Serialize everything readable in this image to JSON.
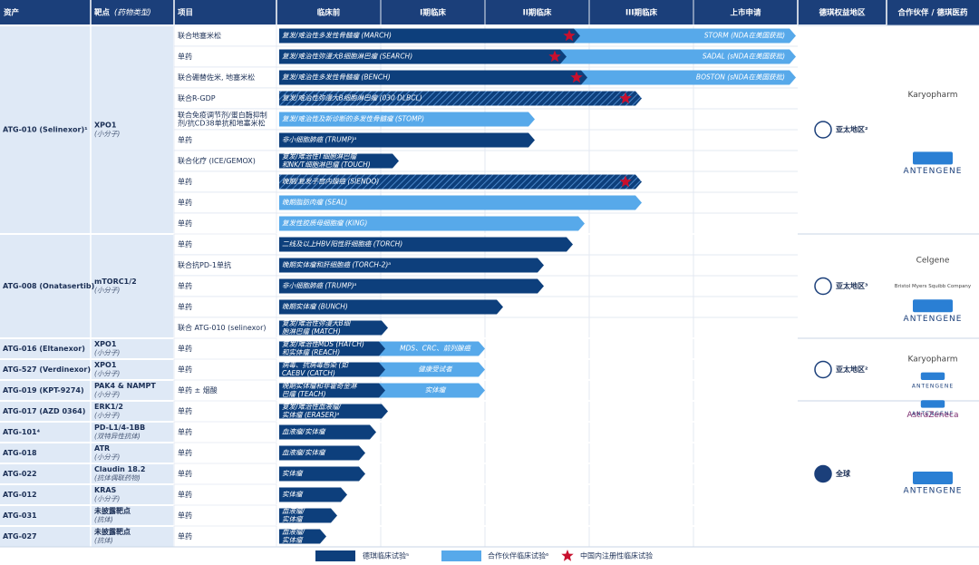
{
  "header": {
    "asset": "资产",
    "target": "靶点",
    "target_type": "(药物类型)",
    "project": "项目",
    "phases": [
      "临床前",
      "I期临床",
      "II期临床",
      "III期临床",
      "上市申请"
    ],
    "region": "德琪权益地区",
    "partner": "合作伙伴 / 德琪医药"
  },
  "assets": [
    {
      "name": "ATG-010 (Selinexor)¹",
      "target": "XPO1",
      "type": "(小分子)",
      "rows": [
        {
          "project": [
            "联合地塞米松"
          ],
          "trial": [
            "复发/难治性多发性骨髓瘤 (MARCH)"
          ],
          "extra": "STORM (NDA在美国获批)"
        },
        {
          "project": [
            "单药"
          ],
          "trial": [
            "复发/难治性弥漫大B细胞淋巴瘤 (SEARCH)"
          ],
          "extra": "SADAL (sNDA在美国获批)"
        },
        {
          "project": [
            "联合硼替佐米, 地塞米松"
          ],
          "trial": [
            "复发/难治性多发性骨髓瘤 (BENCH)"
          ],
          "extra": "BOSTON (sNDA在美国获批)"
        },
        {
          "project": [
            "联合R-GDP"
          ],
          "trial": [
            "复发/难治性弥漫大B细胞淋巴瘤 (030 DLBCL)"
          ]
        },
        {
          "project": [
            "联合免疫调节剂/蛋白酶抑制",
            "剂/抗CD38单抗和地塞米松"
          ],
          "trial": [
            "复发/难治性及新诊断的多发性骨髓瘤 (STOMP)"
          ]
        },
        {
          "project": [
            "单药"
          ],
          "trial": [
            "非小细胞肺癌 (TRUMP)ᵃ"
          ]
        },
        {
          "project": [
            "联合化疗 (ICE/GEMOX)"
          ],
          "trial": [
            "复发/难治性T细胞淋巴瘤",
            "和NK/T细胞淋巴瘤 (TOUCH)"
          ]
        },
        {
          "project": [
            "单药"
          ],
          "trial": [
            "晚期/复发子宫内膜癌 (SIENDO)"
          ]
        },
        {
          "project": [
            "单药"
          ],
          "trial": [
            "晚期脂肪肉瘤 (SEAL)"
          ]
        },
        {
          "project": [
            "单药"
          ],
          "trial": [
            "复发性胶质母细胞瘤 (KING)"
          ]
        }
      ]
    },
    {
      "name": "ATG-008 (Onatasertib)",
      "target": "mTORC1/2",
      "type": "(小分子)",
      "rows": [
        {
          "project": [
            "单药"
          ],
          "trial": [
            "二线及以上HBV阳性肝细胞癌 (TORCH)"
          ]
        },
        {
          "project": [
            "联合抗PD-1单抗"
          ],
          "trial": [
            "晚期实体瘤和肝细胞癌 (TORCH-2)ᵃ"
          ]
        },
        {
          "project": [
            "单药"
          ],
          "trial": [
            "非小细胞肺癌 (TRUMP)ᵃ"
          ]
        },
        {
          "project": [
            "单药"
          ],
          "trial": [
            "晚期实体瘤 (BUNCH)"
          ]
        },
        {
          "project": [
            "联合 ATG-010 (selinexor)"
          ],
          "trial": [
            "复发/难治性弥漫大B细",
            "胞淋巴瘤 (MATCH)"
          ]
        }
      ]
    },
    {
      "name": "ATG-016 (Eltanexor)",
      "target": "XPO1",
      "type": "(小分子)",
      "rows": [
        {
          "project": [
            "单药"
          ],
          "trial": [
            "复发/难治性MDS (HATCH)",
            "和实体瘤 (REACH)"
          ],
          "extra": "MDS、CRC、前列腺癌"
        }
      ]
    },
    {
      "name": "ATG-527 (Verdinexor)",
      "target": "XPO1",
      "type": "(小分子)",
      "rows": [
        {
          "project": [
            "单药"
          ],
          "trial": [
            "病毒、抗病毒感染 (如",
            "CAEBV (CATCH)"
          ],
          "extra": "健康受试者"
        }
      ]
    },
    {
      "name": "ATG-019 (KPT-9274)",
      "target": "PAK4 & NAMPT",
      "type": "(小分子)",
      "rows": [
        {
          "project": [
            "单药 ± 烟酸"
          ],
          "trial": [
            "晚期实体瘤和非霍奇金淋",
            "巴瘤 (TEACH)"
          ],
          "extra": "实体瘤"
        }
      ]
    },
    {
      "name": "ATG-017 (AZD 0364)",
      "target": "ERK1/2",
      "type": "(小分子)",
      "rows": [
        {
          "project": [
            "单药"
          ],
          "trial": [
            "复发/难治性血液瘤/",
            "实体瘤 (ERASER)ᵃ"
          ]
        }
      ]
    },
    {
      "name": "ATG-101⁴",
      "target": "PD-L1/4-1BB",
      "type": "(双特异性抗体)",
      "rows": [
        {
          "project": [
            "单药"
          ],
          "trial": [
            "血液瘤/实体瘤"
          ]
        }
      ]
    },
    {
      "name": "ATG-018",
      "target": "ATR",
      "type": "(小分子)",
      "rows": [
        {
          "project": [
            "单药"
          ],
          "trial": [
            "血液瘤/实体瘤"
          ]
        }
      ]
    },
    {
      "name": "ATG-022",
      "target": "Claudin 18.2",
      "type": "(抗体偶联药物)",
      "rows": [
        {
          "project": [
            "单药"
          ],
          "trial": [
            "实体瘤"
          ]
        }
      ]
    },
    {
      "name": "ATG-012",
      "target": "KRAS",
      "type": "(小分子)",
      "rows": [
        {
          "project": [
            "单药"
          ],
          "trial": [
            "实体瘤"
          ]
        }
      ]
    },
    {
      "name": "ATG-031",
      "target": "未披露靶点",
      "type": "(抗体)",
      "rows": [
        {
          "project": [
            "单药"
          ],
          "trial": [
            "血液瘤/",
            "实体瘤"
          ]
        }
      ]
    },
    {
      "name": "ATG-027",
      "target": "未披露靶点",
      "type": "(抗体)",
      "rows": [
        {
          "project": [
            "单药"
          ],
          "trial": [
            "血液瘤/",
            "实体瘤"
          ]
        }
      ]
    }
  ],
  "regions": [
    "亚太地区²",
    "亚太地区³",
    "亚太地区²",
    "全球"
  ],
  "partners": [
    [
      "Karyopharm",
      "ANTENGENE"
    ],
    [
      "Celgene",
      "Bristol Myers Squibb Company",
      "ANTENGENE"
    ],
    [
      "Karyopharm",
      "ANTENGENE"
    ],
    [
      "ANTENGENE",
      "AstraZeneca"
    ],
    [
      "ANTENGENE"
    ]
  ],
  "legend": [
    "德琪临床试验⁵",
    "合作伙伴临床试验⁶",
    "中国内注册性临床试验"
  ]
}
